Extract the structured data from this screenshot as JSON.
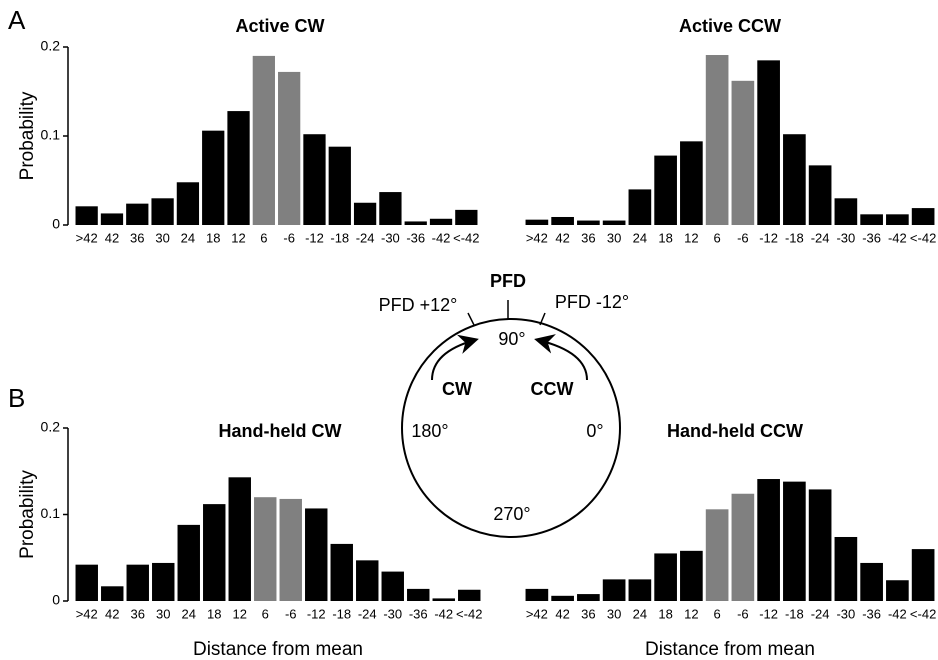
{
  "panels": [
    "A",
    "B"
  ],
  "diagram": {
    "pfd": "PFD",
    "pfd_plus": "PFD +12°",
    "pfd_minus": "PFD -12°",
    "top": "90°",
    "cw": "CW",
    "ccw": "CCW",
    "left": "180°",
    "right": "0°",
    "bottom": "270°"
  },
  "chart_data": [
    {
      "type": "bar",
      "title": "Active CW",
      "ylabel": "Probability",
      "categories": [
        ">42",
        "42",
        "36",
        "30",
        "24",
        "18",
        "12",
        "6",
        "-6",
        "-12",
        "-18",
        "-24",
        "-30",
        "-36",
        "-42",
        "<-42"
      ],
      "values": [
        0.021,
        0.013,
        0.024,
        0.03,
        0.048,
        0.106,
        0.128,
        0.19,
        0.172,
        0.102,
        0.088,
        0.025,
        0.037,
        0.004,
        0.007,
        0.017
      ],
      "colors": [
        "#000000",
        "#000000",
        "#000000",
        "#000000",
        "#000000",
        "#000000",
        "#000000",
        "#808080",
        "#808080",
        "#000000",
        "#000000",
        "#000000",
        "#000000",
        "#000000",
        "#000000",
        "#000000"
      ],
      "ylim": [
        0,
        0.2
      ],
      "yticks": [
        0,
        0.1,
        0.2
      ]
    },
    {
      "type": "bar",
      "title": "Active CCW",
      "categories": [
        ">42",
        "42",
        "36",
        "30",
        "24",
        "18",
        "12",
        "6",
        "-6",
        "-12",
        "-18",
        "-24",
        "-30",
        "-36",
        "-42",
        "<-42"
      ],
      "values": [
        0.006,
        0.009,
        0.005,
        0.005,
        0.04,
        0.078,
        0.094,
        0.191,
        0.162,
        0.185,
        0.102,
        0.067,
        0.03,
        0.012,
        0.012,
        0.019
      ],
      "colors": [
        "#000000",
        "#000000",
        "#000000",
        "#000000",
        "#000000",
        "#000000",
        "#000000",
        "#808080",
        "#808080",
        "#000000",
        "#000000",
        "#000000",
        "#000000",
        "#000000",
        "#000000",
        "#000000"
      ],
      "ylim": [
        0,
        0.2
      ]
    },
    {
      "type": "bar",
      "title": "Hand-held CW",
      "ylabel": "Probability",
      "xlabel": "Distance from mean",
      "categories": [
        ">42",
        "42",
        "36",
        "30",
        "24",
        "18",
        "12",
        "6",
        "-6",
        "-12",
        "-18",
        "-24",
        "-30",
        "-36",
        "-42",
        "<-42"
      ],
      "values": [
        0.042,
        0.017,
        0.042,
        0.044,
        0.088,
        0.112,
        0.143,
        0.12,
        0.118,
        0.107,
        0.066,
        0.047,
        0.034,
        0.014,
        0.003,
        0.013
      ],
      "colors": [
        "#000000",
        "#000000",
        "#000000",
        "#000000",
        "#000000",
        "#000000",
        "#000000",
        "#808080",
        "#808080",
        "#000000",
        "#000000",
        "#000000",
        "#000000",
        "#000000",
        "#000000",
        "#000000"
      ],
      "ylim": [
        0,
        0.2
      ],
      "yticks": [
        0,
        0.1,
        0.2
      ]
    },
    {
      "type": "bar",
      "title": "Hand-held CCW",
      "xlabel": "Distance from mean",
      "categories": [
        ">42",
        "42",
        "36",
        "30",
        "24",
        "18",
        "12",
        "6",
        "-6",
        "-12",
        "-18",
        "-24",
        "-30",
        "-36",
        "-42",
        "<-42"
      ],
      "values": [
        0.014,
        0.006,
        0.008,
        0.025,
        0.025,
        0.055,
        0.058,
        0.106,
        0.124,
        0.141,
        0.138,
        0.129,
        0.074,
        0.044,
        0.024,
        0.06
      ],
      "colors": [
        "#000000",
        "#000000",
        "#000000",
        "#000000",
        "#000000",
        "#000000",
        "#000000",
        "#808080",
        "#808080",
        "#000000",
        "#000000",
        "#000000",
        "#000000",
        "#000000",
        "#000000",
        "#000000"
      ],
      "ylim": [
        0,
        0.2
      ]
    }
  ]
}
